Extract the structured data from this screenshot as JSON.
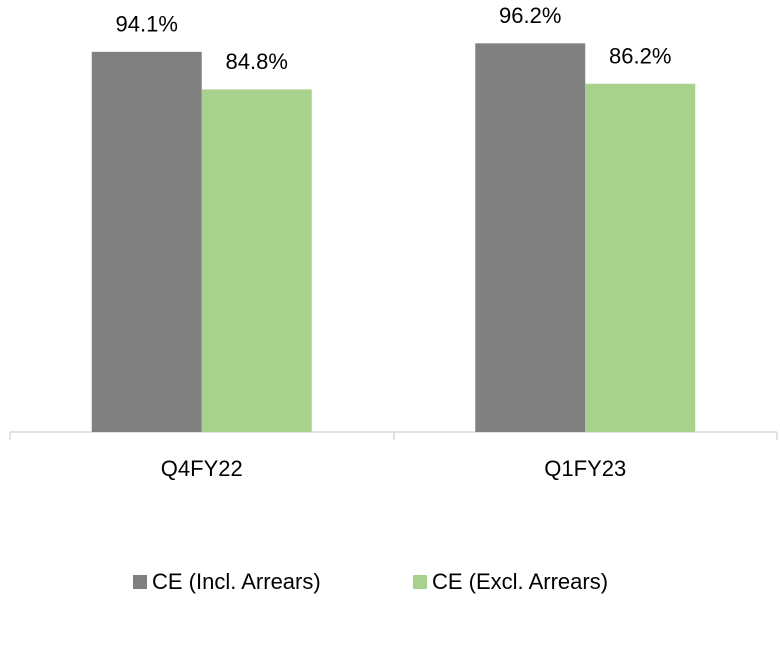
{
  "chart_data": {
    "type": "bar",
    "categories": [
      "Q4FY22",
      "Q1FY23"
    ],
    "series": [
      {
        "name": "CE (Incl. Arrears)",
        "color": "#808080",
        "values": [
          94.1,
          96.2
        ],
        "value_labels": [
          "94.1%",
          "96.2%"
        ]
      },
      {
        "name": "CE (Excl. Arrears)",
        "color": "#a9d18e",
        "values": [
          84.8,
          86.2
        ],
        "value_labels": [
          "84.8%",
          "86.2%"
        ]
      }
    ],
    "ylim": [
      0,
      100
    ],
    "grid": false,
    "legend": "bottom"
  }
}
